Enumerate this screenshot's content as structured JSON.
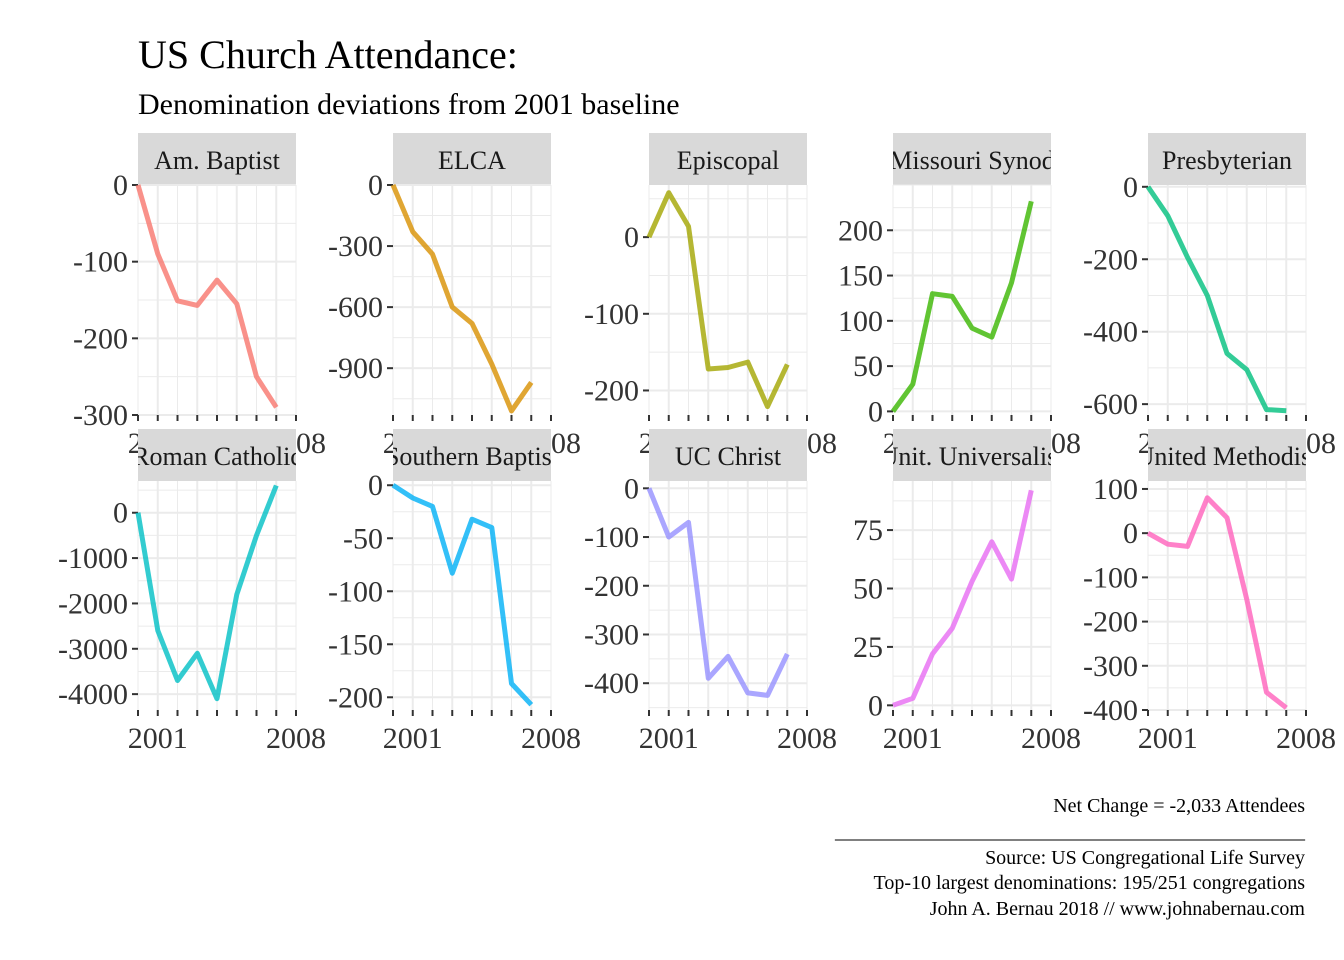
{
  "title": "US Church Attendance:",
  "subtitle": "Denomination deviations from 2001 baseline",
  "caption": {
    "net_change": "Net Change = -2,033 Attendees",
    "rule": "_______________________________________________",
    "source": "Source: US Congregational Life Survey",
    "sample": "Top-10 largest denominations: 195/251 congregations",
    "credit": "John A. Bernau 2018 // www.johnabernau.com"
  },
  "chart_data": {
    "type": "line",
    "layout": "facet-grid 5 columns x 2 rows, free y scales",
    "x": [
      2000,
      2001,
      2002,
      2003,
      2004,
      2005,
      2006,
      2007,
      2008
    ],
    "xlim": [
      2000,
      2008
    ],
    "x_tick_labels": [
      "2001",
      "2008"
    ],
    "x_tick_values": [
      2001,
      2008
    ],
    "grid": true,
    "panels": [
      {
        "name": "Am. Baptist",
        "color": "#F8766D",
        "values": [
          0,
          -90,
          -151,
          -157,
          -124,
          -155,
          -250,
          -290,
          null
        ],
        "xrange": [
          2000,
          2007
        ],
        "ylim": [
          -300,
          0
        ],
        "yticks": [
          0,
          -100,
          -200,
          -300
        ]
      },
      {
        "name": "ELCA",
        "color": "#D89000",
        "values": [
          0,
          -230,
          -340,
          -600,
          -680,
          -880,
          -1110,
          -970,
          null
        ],
        "xrange": [
          2000,
          2007
        ],
        "ylim": [
          -1130,
          0
        ],
        "yticks": [
          0,
          -300,
          -600,
          -900
        ]
      },
      {
        "name": "Episcopal",
        "color": "#A3A500",
        "values": [
          0,
          58,
          14,
          -172,
          -170,
          -163,
          -221,
          -166,
          null
        ],
        "xrange": [
          2000,
          2007
        ],
        "ylim": [
          -232,
          68
        ],
        "yticks": [
          0,
          -100,
          -200
        ]
      },
      {
        "name": "Missouri Synod",
        "color": "#39B600",
        "values": [
          0,
          30,
          130,
          127,
          92,
          82,
          142,
          232,
          null
        ],
        "xrange": [
          2000,
          2007
        ],
        "ylim": [
          -4,
          250
        ],
        "yticks": [
          0,
          50,
          100,
          150,
          200
        ]
      },
      {
        "name": "Presbyterian",
        "color": "#00BF7D",
        "values": [
          0,
          -80,
          -195,
          -300,
          -460,
          -505,
          -615,
          -618,
          null
        ],
        "xrange": [
          2000,
          2007
        ],
        "ylim": [
          -630,
          5
        ],
        "yticks": [
          0,
          -200,
          -400,
          -600
        ]
      },
      {
        "name": "Roman Catholic",
        "color": "#00BFC4",
        "values": [
          0,
          -2600,
          -3700,
          -3100,
          -4100,
          -1800,
          -500,
          600,
          null
        ],
        "xrange": [
          2000,
          2007
        ],
        "ylim": [
          -4350,
          700
        ],
        "yticks": [
          0,
          -1000,
          -2000,
          -3000,
          -4000
        ]
      },
      {
        "name": "Southern Baptist",
        "color": "#00B0F6",
        "values": [
          0,
          -12,
          -20,
          -83,
          -32,
          -40,
          -187,
          -207,
          null
        ],
        "xrange": [
          2000,
          2007
        ],
        "ylim": [
          -212,
          4
        ],
        "yticks": [
          0,
          -50,
          -100,
          -150,
          -200
        ]
      },
      {
        "name": "UC Christ",
        "color": "#9590FF",
        "values": [
          0,
          -100,
          -70,
          -390,
          -345,
          -420,
          -425,
          -340,
          null
        ],
        "xrange": [
          2000,
          2007
        ],
        "ylim": [
          -455,
          15
        ],
        "yticks": [
          0,
          -100,
          -200,
          -300,
          -400
        ]
      },
      {
        "name": "Unit. Universalist",
        "color": "#E76BF3",
        "values": [
          0,
          3,
          22,
          33,
          53,
          70,
          54,
          92,
          null
        ],
        "xrange": [
          2000,
          2007
        ],
        "ylim": [
          -2,
          96
        ],
        "yticks": [
          0,
          25,
          50,
          75
        ]
      },
      {
        "name": "United Methodist",
        "color": "#FF62BC",
        "values": [
          0,
          -25,
          -30,
          80,
          35,
          -150,
          -360,
          -395,
          null
        ],
        "xrange": [
          2000,
          2007
        ],
        "ylim": [
          -400,
          118
        ],
        "yticks": [
          100,
          0,
          -100,
          -200,
          -300,
          -400
        ]
      }
    ]
  }
}
